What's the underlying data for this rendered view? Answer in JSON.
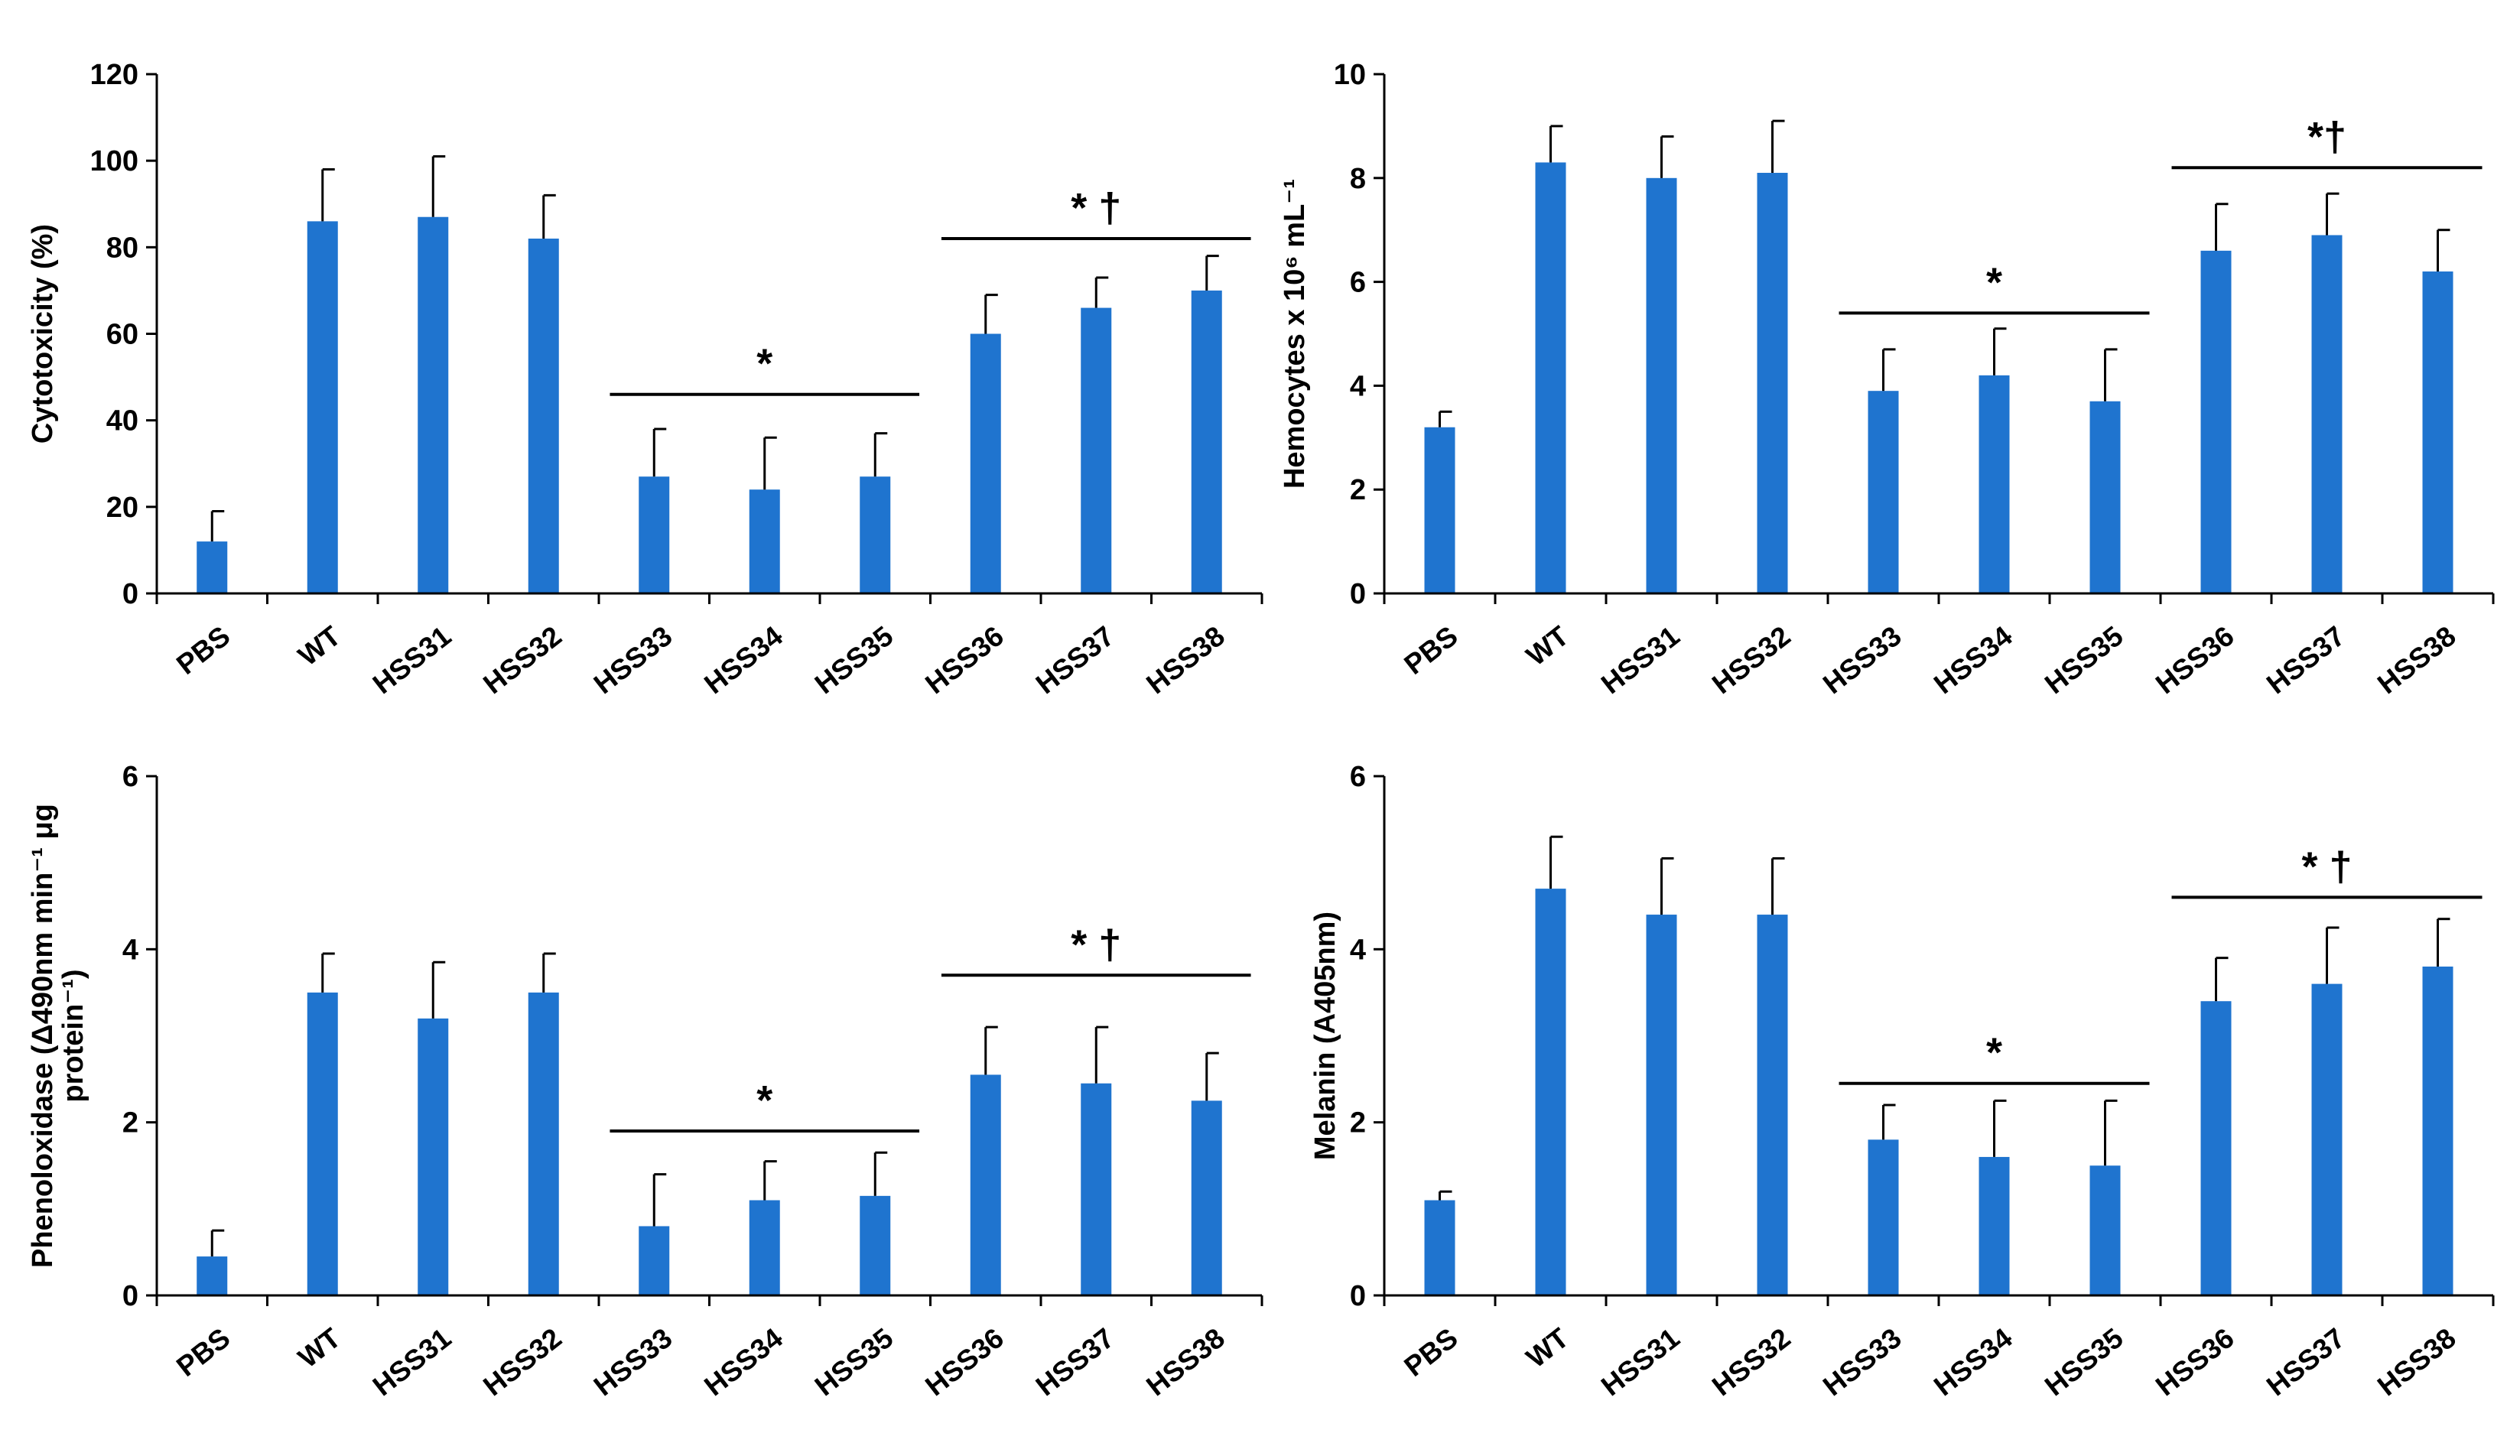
{
  "colors": {
    "bar": "#1f74cf",
    "axis": "#000000",
    "text": "#000000"
  },
  "chart_data": [
    {
      "type": "bar",
      "title": "",
      "ylabel_lines": [
        "Cytotoxicity (%)"
      ],
      "ylim": [
        0,
        120
      ],
      "yticks": [
        "0",
        "20",
        "40",
        "60",
        "80",
        "100",
        "120"
      ],
      "categories": [
        "PBS",
        "WT",
        "HSS31",
        "HSS32",
        "HSS33",
        "HSS34",
        "HSS35",
        "HSS36",
        "HSS37",
        "HSS38"
      ],
      "values": [
        12,
        86,
        87,
        82,
        27,
        24,
        27,
        60,
        66,
        70
      ],
      "errors": [
        7,
        12,
        14,
        10,
        11,
        12,
        10,
        9,
        7,
        8
      ],
      "annotations": [
        {
          "label": "*",
          "from": 4,
          "to": 6,
          "y": 46
        },
        {
          "label": "* †",
          "from": 7,
          "to": 9,
          "y": 82
        }
      ]
    },
    {
      "type": "bar",
      "title": "",
      "ylabel_lines": [
        "Hemocytes x 10⁶ mL⁻¹"
      ],
      "ylim": [
        0,
        10
      ],
      "yticks": [
        "0",
        "2",
        "4",
        "6",
        "8",
        "10"
      ],
      "categories": [
        "PBS",
        "WT",
        "HSS31",
        "HSS32",
        "HSS33",
        "HSS34",
        "HSS35",
        "HSS36",
        "HSS37",
        "HSS38"
      ],
      "values": [
        3.2,
        8.3,
        8.0,
        8.1,
        3.9,
        4.2,
        3.7,
        6.6,
        6.9,
        6.2
      ],
      "errors": [
        0.3,
        0.7,
        0.8,
        1.0,
        0.8,
        0.9,
        1.0,
        0.9,
        0.8,
        0.8
      ],
      "annotations": [
        {
          "label": "*",
          "from": 4,
          "to": 6,
          "y": 5.4
        },
        {
          "label": "*†",
          "from": 7,
          "to": 9,
          "y": 8.2
        }
      ]
    },
    {
      "type": "bar",
      "title": "",
      "ylabel_lines": [
        "Phenoloxidase (Δ490nm min⁻¹ μg",
        "protein⁻¹)"
      ],
      "ylim": [
        0,
        6
      ],
      "yticks": [
        "0",
        "2",
        "4",
        "6"
      ],
      "categories": [
        "PBS",
        "WT",
        "HSS31",
        "HSS32",
        "HSS33",
        "HSS34",
        "HSS35",
        "HSS36",
        "HSS37",
        "HSS38"
      ],
      "values": [
        0.45,
        3.5,
        3.2,
        3.5,
        0.8,
        1.1,
        1.15,
        2.55,
        2.45,
        2.25
      ],
      "errors": [
        0.3,
        0.45,
        0.65,
        0.45,
        0.6,
        0.45,
        0.5,
        0.55,
        0.65,
        0.55
      ],
      "annotations": [
        {
          "label": "*",
          "from": 4,
          "to": 6,
          "y": 1.9
        },
        {
          "label": "* †",
          "from": 7,
          "to": 9,
          "y": 3.7
        }
      ]
    },
    {
      "type": "bar",
      "title": "",
      "ylabel_lines": [
        "Melanin (A405nm)"
      ],
      "ylim": [
        0,
        6
      ],
      "yticks": [
        "0",
        "2",
        "4",
        "6"
      ],
      "categories": [
        "PBS",
        "WT",
        "HSS31",
        "HSS32",
        "HSS33",
        "HSS34",
        "HSS35",
        "HSS36",
        "HSS37",
        "HSS38"
      ],
      "values": [
        1.1,
        4.7,
        4.4,
        4.4,
        1.8,
        1.6,
        1.5,
        3.4,
        3.6,
        3.8
      ],
      "errors": [
        0.1,
        0.6,
        0.65,
        0.65,
        0.4,
        0.65,
        0.75,
        0.5,
        0.65,
        0.55
      ],
      "annotations": [
        {
          "label": "*",
          "from": 4,
          "to": 6,
          "y": 2.45
        },
        {
          "label": "* †",
          "from": 7,
          "to": 9,
          "y": 4.6
        }
      ]
    }
  ]
}
